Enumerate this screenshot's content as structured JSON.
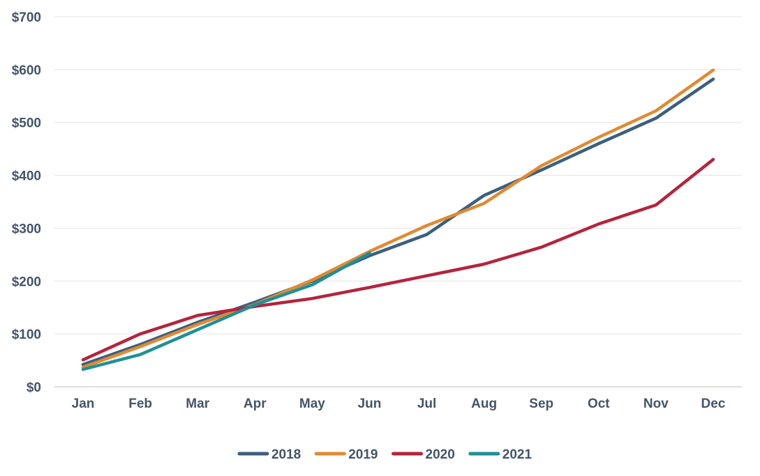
{
  "chart_data": {
    "type": "line",
    "title": "",
    "xlabel": "",
    "ylabel": "",
    "categories": [
      "Jan",
      "Feb",
      "Mar",
      "Apr",
      "May",
      "Jun",
      "Jul",
      "Aug",
      "Sep",
      "Oct",
      "Nov",
      "Dec"
    ],
    "ylim": [
      0,
      700
    ],
    "yticks": [
      0,
      100,
      200,
      300,
      400,
      500,
      600,
      700
    ],
    "ytick_labels": [
      "$0",
      "$100",
      "$200",
      "$300",
      "$400",
      "$500",
      "$600",
      "$700"
    ],
    "grid": true,
    "legend_position": "bottom-center",
    "series": [
      {
        "name": "2018",
        "color": "#3b5f7f",
        "values": [
          42,
          80,
          122,
          160,
          200,
          248,
          288,
          362,
          410,
          460,
          508,
          582
        ]
      },
      {
        "name": "2019",
        "color": "#e18a31",
        "values": [
          37,
          76,
          118,
          156,
          202,
          256,
          305,
          347,
          418,
          472,
          522,
          599
        ]
      },
      {
        "name": "2020",
        "color": "#b5243c",
        "values": [
          51,
          100,
          135,
          152,
          167,
          188,
          210,
          232,
          264,
          308,
          344,
          430
        ]
      },
      {
        "name": "2021",
        "color": "#1f9097",
        "values": [
          33,
          61,
          108,
          155,
          193,
          253,
          null,
          null,
          null,
          null,
          null,
          null
        ]
      }
    ]
  }
}
